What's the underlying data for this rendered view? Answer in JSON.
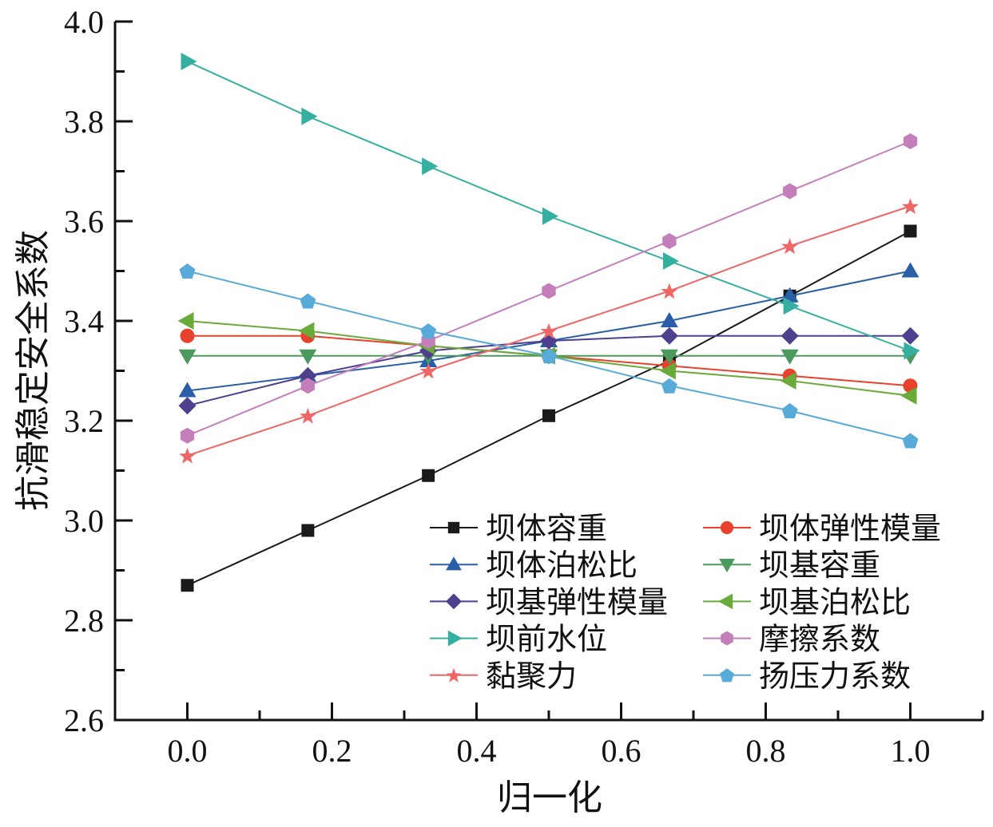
{
  "chart_data": {
    "type": "line",
    "title": "",
    "xlabel": "归一化",
    "ylabel": "抗滑稳定安全系数",
    "xlim": [
      -0.1,
      1.1
    ],
    "ylim": [
      2.6,
      4.0
    ],
    "xticks": [
      0.0,
      0.2,
      0.4,
      0.6,
      0.8,
      1.0
    ],
    "xtick_labels": [
      "0.0",
      "0.2",
      "0.4",
      "0.6",
      "0.8",
      "1.0"
    ],
    "yticks": [
      2.6,
      2.8,
      3.0,
      3.2,
      3.4,
      3.6,
      3.8,
      4.0
    ],
    "ytick_labels": [
      "2.6",
      "2.8",
      "3.0",
      "3.2",
      "3.4",
      "3.6",
      "3.8",
      "4.0"
    ],
    "grid": false,
    "legend": {
      "placement": "bottom-right",
      "columns": 2
    },
    "x": [
      0.0,
      0.1667,
      0.3333,
      0.5,
      0.6667,
      0.8333,
      1.0
    ],
    "series": [
      {
        "name": "坝体容重",
        "marker": "square",
        "color": "#1a1a1a",
        "values": [
          2.87,
          2.98,
          3.09,
          3.21,
          3.32,
          3.45,
          3.58
        ]
      },
      {
        "name": "坝体弹性模量",
        "marker": "circle",
        "color": "#e8412c",
        "values": [
          3.37,
          3.37,
          3.35,
          3.33,
          3.31,
          3.29,
          3.27
        ]
      },
      {
        "name": "坝体泊松比",
        "marker": "triangle-up",
        "color": "#2a5fa8",
        "values": [
          3.26,
          3.29,
          3.32,
          3.36,
          3.4,
          3.45,
          3.5
        ]
      },
      {
        "name": "坝基容重",
        "marker": "triangle-down",
        "color": "#4a9a5e",
        "values": [
          3.33,
          3.33,
          3.33,
          3.33,
          3.33,
          3.33,
          3.33
        ]
      },
      {
        "name": "坝基弹性模量",
        "marker": "diamond",
        "color": "#4e3f8f",
        "values": [
          3.23,
          3.29,
          3.34,
          3.36,
          3.37,
          3.37,
          3.37
        ]
      },
      {
        "name": "坝基泊松比",
        "marker": "triangle-left",
        "color": "#6aaa3a",
        "values": [
          3.4,
          3.38,
          3.35,
          3.33,
          3.3,
          3.28,
          3.25
        ]
      },
      {
        "name": "坝前水位",
        "marker": "triangle-right",
        "color": "#35b0a0",
        "values": [
          3.92,
          3.81,
          3.71,
          3.61,
          3.52,
          3.43,
          3.34
        ]
      },
      {
        "name": "摩擦系数",
        "marker": "hexagon",
        "color": "#c47fbb",
        "values": [
          3.17,
          3.27,
          3.36,
          3.46,
          3.56,
          3.66,
          3.76
        ]
      },
      {
        "name": "黏聚力",
        "marker": "star",
        "color": "#ee6666",
        "values": [
          3.13,
          3.21,
          3.3,
          3.38,
          3.46,
          3.55,
          3.63
        ]
      },
      {
        "name": "扬压力系数",
        "marker": "pentagon",
        "color": "#58aad8",
        "values": [
          3.5,
          3.44,
          3.38,
          3.33,
          3.27,
          3.22,
          3.16
        ]
      }
    ]
  }
}
